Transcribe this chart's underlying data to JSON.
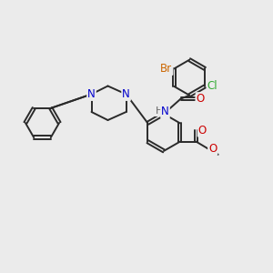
{
  "bg_color": "#EBEBEB",
  "bond_color": "#2a2a2a",
  "bond_width": 1.4,
  "atom_colors": {
    "N": "#0000CC",
    "O": "#CC0000",
    "Br": "#CC6600",
    "Cl": "#33AA33",
    "H": "#666666",
    "C": "#2a2a2a"
  },
  "font_size": 8.5,
  "fig_size": [
    3.0,
    3.0
  ],
  "dpi": 100
}
